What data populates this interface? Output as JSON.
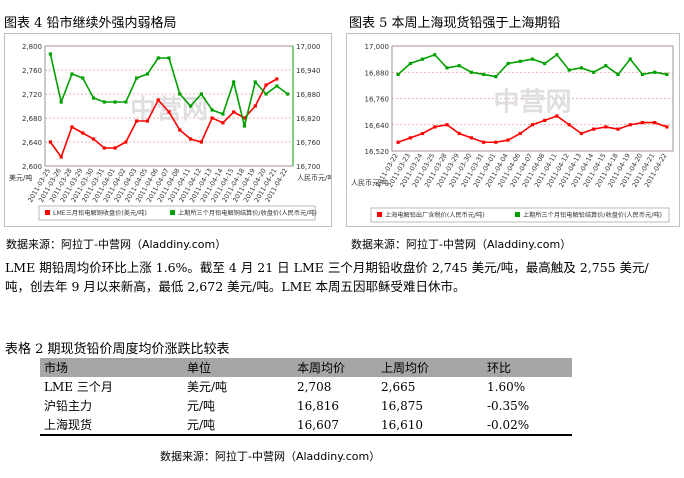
{
  "fig4": {
    "title": "图表 4    铅市继续外强内弱格局",
    "left_unit": "美元/吨",
    "right_unit": "人民币元/吨",
    "legend": [
      "LME三月铅电解铜收盘价(美元/吨)",
      "上期所三个月铅电解铜结算价/收盘价(人民币元/吨)"
    ],
    "watermark": "中营网",
    "source": "数据来源：阿拉丁-中营网（Aladdiny.com）"
  },
  "fig5": {
    "title": "图表 5    本周上海现货铅强于上海期铅",
    "unit": "人民币元/吨",
    "legend": [
      "上海电解铅出厂含税价(人民币元/吨)",
      "上期所三个月铅电解铅结算价/收盘价(人民币元/吨)"
    ],
    "watermark": "中营网",
    "source": "数据来源：阿拉丁-中营网（Aladdiny.com）"
  },
  "chart_data": [
    {
      "type": "line",
      "categories": [
        "2011-03-25",
        "2011-03-26",
        "2011-03-28",
        "2011-03-29",
        "2011-03-30",
        "2011-03-31",
        "2011-04-01",
        "2011-04-02",
        "2011-04-03",
        "2011-04-05",
        "2011-04-06",
        "2011-04-07",
        "2011-04-08",
        "2011-04-11",
        "2011-04-12",
        "2011-04-13",
        "2011-04-14",
        "2011-04-15",
        "2011-04-18",
        "2011-04-19",
        "2011-04-20",
        "2011-04-21",
        "2011-04-22"
      ],
      "y_left": {
        "ylim": [
          2600,
          2800
        ],
        "ticks": [
          "2,600",
          "2,640",
          "2,680",
          "2,720",
          "2,760",
          "2,800"
        ]
      },
      "y_right": {
        "ylim": [
          16700,
          17000
        ],
        "ticks": [
          "16,700",
          "16,760",
          "16,820",
          "16,880",
          "16,940",
          "17,000"
        ]
      },
      "series": [
        {
          "name": "LME三月铅电解铜收盘价(美元/吨)",
          "axis": "left",
          "color": "#ff0000",
          "values": [
            2640,
            2615,
            2665,
            2655,
            2645,
            2630,
            2630,
            2640,
            2675,
            2675,
            2710,
            2690,
            2660,
            2645,
            2640,
            2680,
            2672,
            2690,
            2680,
            2700,
            2735,
            2745,
            null
          ]
        },
        {
          "name": "上期所三个月铅电解铜结算价/收盘价(人民币元/吨)",
          "axis": "right",
          "color": "#00a000",
          "values": [
            16980,
            16860,
            16930,
            16920,
            16870,
            16860,
            16860,
            16860,
            16920,
            16930,
            16970,
            16970,
            16880,
            16850,
            16880,
            16840,
            16830,
            16910,
            16800,
            16910,
            16880,
            16900,
            16880
          ]
        }
      ]
    },
    {
      "type": "line",
      "categories": [
        "2011-03-22",
        "2011-03-23",
        "2011-03-24",
        "2011-03-25",
        "2011-03-28",
        "2011-03-29",
        "2011-03-30",
        "2011-03-31",
        "2011-04-01",
        "2011-04-04",
        "2011-04-06",
        "2011-04-07",
        "2011-04-08",
        "2011-04-11",
        "2011-04-12",
        "2011-04-13",
        "2011-04-14",
        "2011-04-15",
        "2011-04-18",
        "2011-04-19",
        "2011-04-20",
        "2011-04-21",
        "2011-04-22"
      ],
      "y": {
        "ylim": [
          16520,
          17000
        ],
        "ticks": [
          "16,520",
          "16,640",
          "16,760",
          "16,880",
          "17,000"
        ]
      },
      "series": [
        {
          "name": "上海电解铅出厂含税价(人民币元/吨)",
          "color": "#ff0000",
          "values": [
            16560,
            16580,
            16600,
            16630,
            16640,
            16600,
            16580,
            16560,
            16560,
            16570,
            16600,
            16640,
            16660,
            16680,
            16640,
            16600,
            16620,
            16630,
            16620,
            16640,
            16650,
            16650,
            16630
          ]
        },
        {
          "name": "上期所三个月铅电解铅结算价/收盘价(人民币元/吨)",
          "color": "#00a000",
          "values": [
            16870,
            16920,
            16940,
            16960,
            16900,
            16910,
            16880,
            16870,
            16860,
            16920,
            16930,
            16940,
            16920,
            16960,
            16890,
            16900,
            16880,
            16910,
            16870,
            16940,
            16870,
            16880,
            16870
          ]
        }
      ]
    }
  ],
  "paragraph": "LME 期铅周均价环比上涨 1.6%。截至 4 月 21 日 LME 三个月期铅收盘价 2,745 美元/吨，最高触及 2,755 美元/吨，创去年 9 月以来新高，最低 2,672 美元/吨。LME 本周五因耶稣受难日休市。",
  "table": {
    "title": "表格 2    期现货铅价周度均价涨跌比较表",
    "headers": [
      "市场",
      "单位",
      "本周均价",
      "上周均价",
      "环比"
    ],
    "rows": [
      [
        "LME 三个月",
        "美元/吨",
        "2,708",
        "2,665",
        "1.60%"
      ],
      [
        "沪铅主力",
        "元/吨",
        "16,816",
        "16,875",
        "-0.35%"
      ],
      [
        "上海现货",
        "元/吨",
        "16,607",
        "16,610",
        "-0.02%"
      ]
    ],
    "source": "数据来源：阿拉丁-中营网（Aladdiny.com）"
  }
}
